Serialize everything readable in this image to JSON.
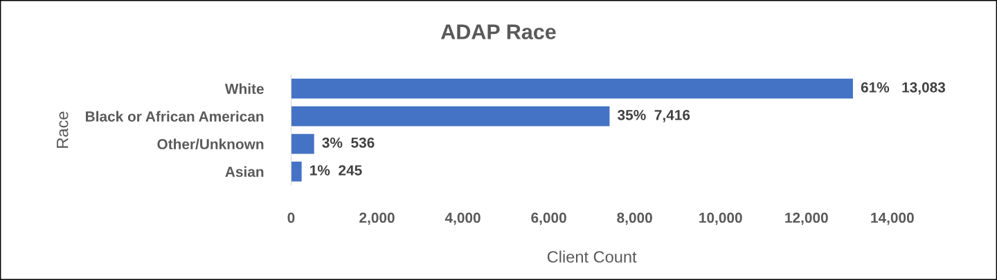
{
  "chart_data": {
    "type": "bar",
    "orientation": "horizontal",
    "title": "ADAP Race",
    "xlabel": "Client Count",
    "ylabel": "Race",
    "categories": [
      "White",
      "Black or African American",
      "Other/Unknown",
      "Asian"
    ],
    "values": [
      13083,
      7416,
      536,
      245
    ],
    "value_labels": [
      "61%   13,083",
      "35%  7,416",
      "3%  536",
      "1%  245"
    ],
    "color": "#4472c4",
    "xlim": [
      0,
      14000
    ],
    "xticks": [
      0,
      {
        "value": 2000,
        "label": "2,000"
      },
      {
        "value": 4000,
        "label": "4,000"
      },
      {
        "value": 6000,
        "label": "6,000"
      },
      {
        "value": 8000,
        "label": "8,000"
      },
      {
        "value": 10000,
        "label": "10,000"
      },
      {
        "value": 12000,
        "label": "12,000"
      },
      {
        "value": 14000,
        "label": "14,000"
      }
    ],
    "grid": false,
    "legend": false
  }
}
